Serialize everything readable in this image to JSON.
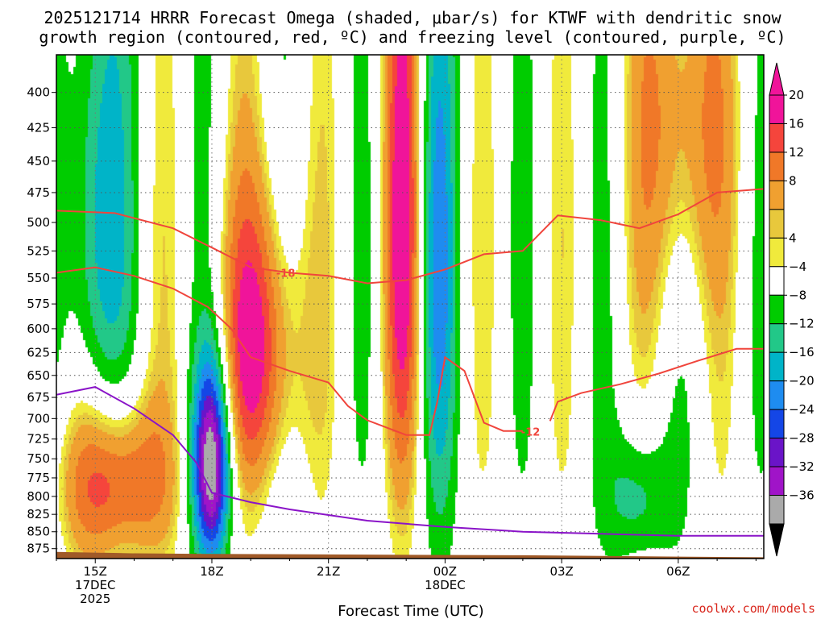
{
  "chart_data": {
    "type": "heatmap",
    "title_line1": "2025121714 HRRR Forecast Omega (shaded, μbar/s) for KTWF with dendritic snow",
    "title_line2": "growth region (contoured, red, ºC) and freezing level (contoured, purple, ºC)",
    "xlabel": "Forecast Time (UTC)",
    "credit": "coolwx.com/models",
    "x_ticks": [
      {
        "label": "15Z",
        "sub1": "17DEC",
        "sub2": "2025",
        "hour": 15
      },
      {
        "label": "18Z",
        "sub1": "",
        "sub2": "",
        "hour": 18
      },
      {
        "label": "21Z",
        "sub1": "",
        "sub2": "",
        "hour": 21
      },
      {
        "label": "00Z",
        "sub1": "18DEC",
        "sub2": "",
        "hour": 24
      },
      {
        "label": "03Z",
        "sub1": "",
        "sub2": "",
        "hour": 27
      },
      {
        "label": "06Z",
        "sub1": "",
        "sub2": "",
        "hour": 30
      }
    ],
    "x_range_hours": [
      14,
      32.2
    ],
    "y_ticks": [
      400,
      425,
      450,
      475,
      500,
      525,
      550,
      575,
      600,
      625,
      650,
      675,
      700,
      725,
      750,
      775,
      800,
      825,
      850,
      875
    ],
    "y_range_hPa": [
      375,
      890
    ],
    "y_scale": "log-pressure",
    "grid": "dotted",
    "colorbar": {
      "labels": [
        "20",
        "16",
        "12",
        "8",
        "4",
        "−4",
        "−8",
        "−12",
        "−16",
        "−20",
        "−24",
        "−28",
        "−32",
        "−36"
      ],
      "colors": [
        "#f0149a",
        "#f5453c",
        "#f07828",
        "#f0a030",
        "#e8c83c",
        "#f0ea3c",
        "#ffffff",
        "#00cc00",
        "#22c888",
        "#00b4c8",
        "#1e8cf0",
        "#1446e6",
        "#6a14c8",
        "#a014c8",
        "#aaaaaa"
      ],
      "top_arrow_color": "#f0149a",
      "bottom_arrow_color": "#000000"
    },
    "omega_features": [
      {
        "name": "neg core 15Z upper",
        "x": 15.0,
        "p": 500,
        "value": -16,
        "sx": 0.55,
        "sp": 170
      },
      {
        "name": "pos core 15Z low",
        "x": 15.5,
        "p": 780,
        "value": 21,
        "sx": 0.95,
        "sp": 80
      },
      {
        "name": "neg core 18Z",
        "x": 18.0,
        "p": 755,
        "value": -36,
        "sx": 0.35,
        "sp": 95
      },
      {
        "name": "pos core 19Z",
        "x": 19.2,
        "p": 620,
        "value": 21,
        "sx": 0.75,
        "sp": 110
      },
      {
        "name": "pos core 23Z",
        "x": 22.9,
        "p": 500,
        "value": 20,
        "sx": 0.35,
        "sp": 190
      },
      {
        "name": "neg core 00Z",
        "x": 23.8,
        "p": 540,
        "value": -14,
        "sx": 0.35,
        "sp": 200
      },
      {
        "name": "pos core 06Z",
        "x": 30.1,
        "p": 420,
        "value": 14,
        "sx": 0.85,
        "sp": 110
      },
      {
        "name": "neg core 05Z",
        "x": 29.0,
        "p": 800,
        "value": -12,
        "sx": 0.55,
        "sp": 70
      }
    ],
    "dgz_contours": [
      {
        "label": "-18",
        "points": [
          [
            14,
            490
          ],
          [
            15.5,
            492
          ],
          [
            17,
            505
          ],
          [
            18,
            522
          ],
          [
            19,
            540
          ],
          [
            20,
            545
          ],
          [
            21,
            548
          ],
          [
            22,
            555
          ],
          [
            23,
            552
          ],
          [
            24,
            542
          ],
          [
            25,
            528
          ],
          [
            26,
            525
          ],
          [
            26.9,
            494
          ],
          [
            28,
            498
          ],
          [
            29,
            505
          ],
          [
            30,
            493
          ],
          [
            31,
            475
          ],
          [
            32.2,
            472
          ]
        ]
      },
      {
        "label": "-12",
        "points": [
          [
            14,
            545
          ],
          [
            15,
            540
          ],
          [
            16,
            548
          ],
          [
            17,
            560
          ],
          [
            17.9,
            578
          ],
          [
            18.5,
            600
          ],
          [
            19,
            630
          ],
          [
            20,
            645
          ],
          [
            21,
            658
          ],
          [
            21.5,
            685
          ],
          [
            22,
            702
          ],
          [
            23,
            720
          ],
          [
            23.6,
            720
          ],
          [
            23.8,
            680
          ],
          [
            24,
            630
          ],
          [
            24.5,
            645
          ],
          [
            25,
            705
          ],
          [
            25.5,
            715
          ],
          [
            26,
            715
          ]
        ]
      },
      {
        "label": "",
        "points": [
          [
            26.7,
            703
          ],
          [
            26.9,
            680
          ],
          [
            27.5,
            670
          ],
          [
            28.5,
            660
          ],
          [
            29.5,
            648
          ],
          [
            30.5,
            634
          ],
          [
            31.5,
            621
          ],
          [
            32.2,
            621
          ]
        ]
      }
    ],
    "freezing_level": {
      "points": [
        [
          14,
          672
        ],
        [
          15,
          663
        ],
        [
          16,
          688
        ],
        [
          17,
          720
        ],
        [
          17.6,
          755
        ],
        [
          18,
          795
        ],
        [
          19,
          808
        ],
        [
          20,
          818
        ],
        [
          21,
          826
        ],
        [
          22,
          834
        ],
        [
          24,
          843
        ],
        [
          26,
          850
        ],
        [
          28,
          853
        ],
        [
          30,
          856
        ],
        [
          32.2,
          856
        ]
      ]
    },
    "terrain_top_hPa": 885
  }
}
